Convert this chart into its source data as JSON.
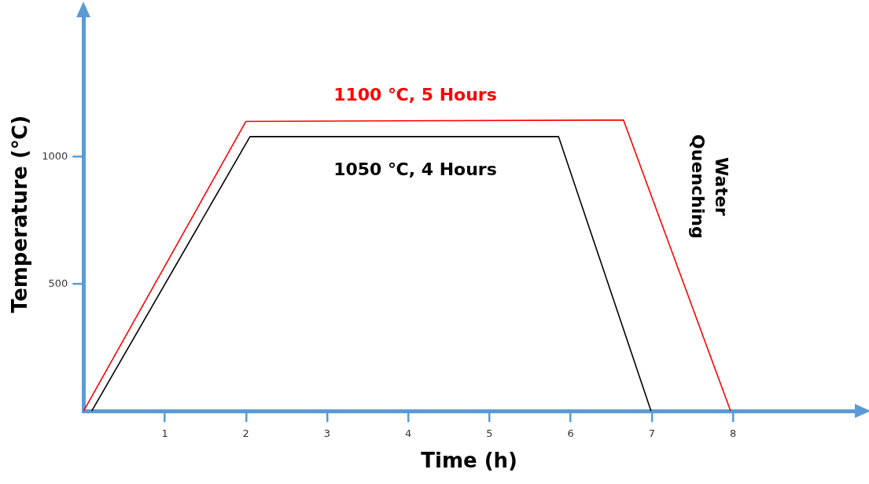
{
  "chart_data": {
    "type": "line",
    "xlabel": "Time (h)",
    "ylabel": "Temperature (℃)",
    "xlim": [
      0,
      9.5
    ],
    "ylim": [
      0,
      1550
    ],
    "xticks": [
      1,
      2,
      3,
      4,
      5,
      6,
      7,
      8
    ],
    "yticks": [
      500,
      1000
    ],
    "grid": false,
    "legend": false,
    "marker": "none",
    "line_style": "solid",
    "series": [
      {
        "color": "#ff0000",
        "x": [
          0,
          2,
          6.65,
          7.97
        ],
        "values": [
          0,
          1140,
          1145,
          0
        ]
      },
      {
        "color": "#000000",
        "x": [
          0.1,
          2.05,
          5.85,
          6.99
        ],
        "values": [
          0,
          1080,
          1080,
          0
        ]
      }
    ],
    "annotations": [
      "1100 ℃, 5 Hours",
      "1050 ℃, 4 Hours",
      "Water Quenching"
    ]
  }
}
